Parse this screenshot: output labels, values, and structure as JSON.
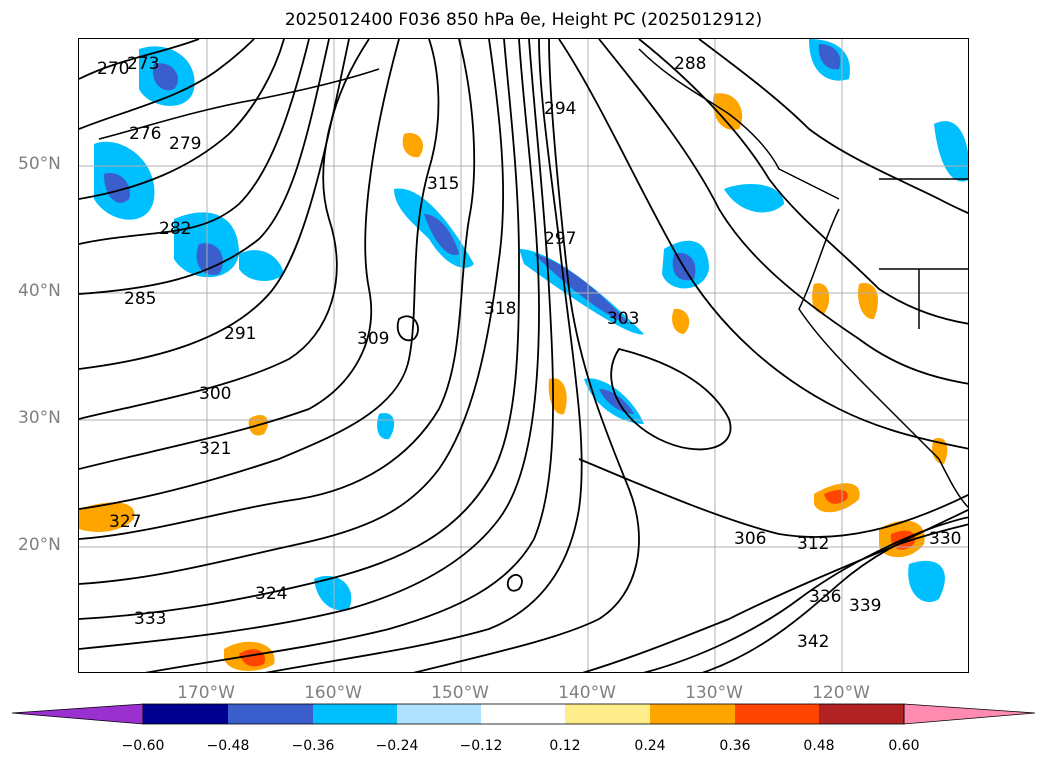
{
  "title": "2025012400 F036 850 hPa θe, Height PC (2025012912)",
  "map": {
    "lat_labels": [
      "50°N",
      "40°N",
      "30°N",
      "20°N"
    ],
    "lon_labels": [
      "170°W",
      "160°W",
      "150°W",
      "140°W",
      "130°W",
      "120°W"
    ],
    "contour_labels": [
      "270",
      "273",
      "276",
      "279",
      "282",
      "285",
      "288",
      "291",
      "294",
      "297",
      "300",
      "303",
      "306",
      "309",
      "312",
      "315",
      "318",
      "321",
      "324",
      "327",
      "330",
      "333",
      "336",
      "339",
      "342"
    ],
    "contour_color": "#000000",
    "grid_color": "#b0b0b0"
  },
  "colorbar": {
    "tick_labels": [
      "−0.60",
      "−0.48",
      "−0.36",
      "−0.24",
      "−0.12",
      "0.12",
      "0.24",
      "0.36",
      "0.48",
      "0.60"
    ],
    "colors": [
      "#9b30d0",
      "#000090",
      "#3a5fcd",
      "#00bfff",
      "#b0e2ff",
      "#ffffff",
      "#ffec8b",
      "#ffa500",
      "#ff4500",
      "#b22222",
      "#ff8cb0"
    ]
  }
}
